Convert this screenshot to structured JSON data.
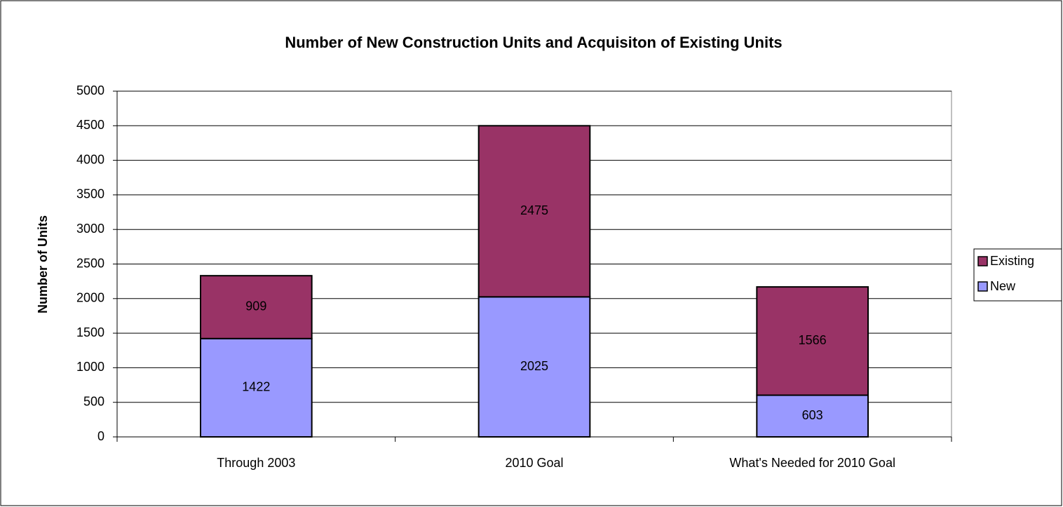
{
  "chart_data": {
    "type": "stacked_bar",
    "title": "Number of New Construction Units and Acquisiton of Existing Units",
    "y_axis_label": "Number of Units",
    "categories": [
      "Through 2003",
      "2010 Goal",
      "What's Needed for 2010 Goal"
    ],
    "series": [
      {
        "name": "New",
        "color": "#9999ff",
        "values": [
          1422,
          2025,
          603
        ]
      },
      {
        "name": "Existing",
        "color": "#993366",
        "values": [
          909,
          2475,
          1566
        ]
      }
    ],
    "ylim": [
      0,
      5000
    ],
    "yticks": [
      0,
      500,
      1000,
      1500,
      2000,
      2500,
      3000,
      3500,
      4000,
      4500,
      5000
    ],
    "grid": true,
    "legend": "right"
  }
}
